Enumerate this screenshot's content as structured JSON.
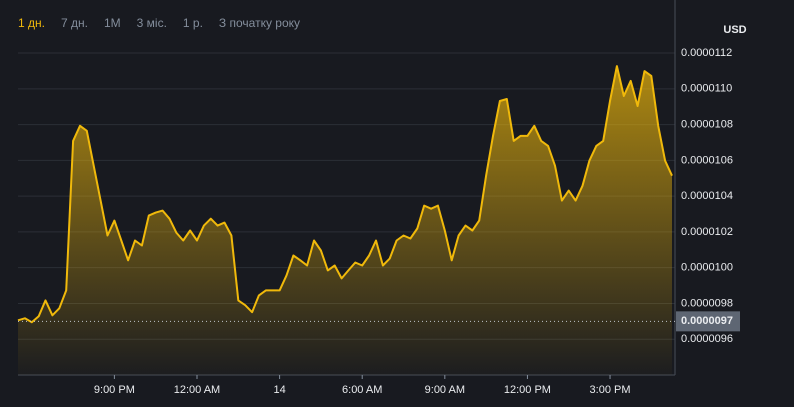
{
  "tabs": {
    "items": [
      "1 дн.",
      "7 дн.",
      "1M",
      "3 міс.",
      "1 р.",
      "З початку року"
    ],
    "active": 0
  },
  "chart_data": {
    "type": "area",
    "y_axis_label": "USD",
    "color": "#f0b90b",
    "categories": [
      null,
      null,
      null,
      null,
      null,
      null,
      null,
      null,
      null,
      null,
      null,
      null,
      null,
      null,
      "9:00 PM",
      null,
      null,
      null,
      null,
      null,
      null,
      null,
      null,
      null,
      null,
      null,
      "12:00 AM",
      null,
      null,
      null,
      null,
      null,
      null,
      null,
      null,
      null,
      null,
      null,
      "14",
      null,
      null,
      null,
      null,
      null,
      null,
      null,
      null,
      null,
      null,
      null,
      "6:00 AM",
      null,
      null,
      null,
      null,
      null,
      null,
      null,
      null,
      null,
      null,
      null,
      "9:00 AM",
      null,
      null,
      null,
      null,
      null,
      null,
      null,
      null,
      null,
      null,
      null,
      "12:00 PM",
      null,
      null,
      null,
      null,
      null,
      null,
      null,
      null,
      null,
      null,
      null,
      "3:00 PM",
      null,
      null,
      null,
      null,
      null,
      null,
      null,
      null,
      null
    ],
    "values": [
      9.706e-06,
      9.717e-06,
      9.695e-06,
      9.728e-06,
      9.817e-06,
      9.734e-06,
      9.773e-06,
      9.873e-06,
      1.0709e-05,
      1.0793e-05,
      1.0765e-05,
      1.057e-05,
      1.0375e-05,
      1.018e-05,
      1.0263e-05,
      1.0152e-05,
      1.0041e-05,
      1.0152e-05,
      1.0124e-05,
      1.0291e-05,
      1.0308e-05,
      1.0319e-05,
      1.0274e-05,
      1.0196e-05,
      1.0152e-05,
      1.0208e-05,
      1.0152e-05,
      1.0235e-05,
      1.0274e-05,
      1.0235e-05,
      1.0252e-05,
      1.018e-05,
      9.817e-06,
      9.79e-06,
      9.751e-06,
      9.845e-06,
      9.873e-06,
      9.873e-06,
      9.873e-06,
      9.957e-06,
      1.0068e-05,
      1.0041e-05,
      1.0012e-05,
      1.0152e-05,
      1.0096e-05,
      9.985e-06,
      1.0012e-05,
      9.94e-06,
      9.985e-06,
      1.0029e-05,
      1.0012e-05,
      1.0068e-05,
      1.0152e-05,
      1.0012e-05,
      1.0051e-05,
      1.0152e-05,
      1.018e-05,
      1.0163e-05,
      1.0219e-05,
      1.0347e-05,
      1.033e-05,
      1.0347e-05,
      1.0208e-05,
      1.0041e-05,
      1.018e-05,
      1.0235e-05,
      1.0208e-05,
      1.0263e-05,
      1.0514e-05,
      1.0737e-05,
      1.0932e-05,
      1.0943e-05,
      1.0709e-05,
      1.0737e-05,
      1.0737e-05,
      1.0793e-05,
      1.0709e-05,
      1.0681e-05,
      1.057e-05,
      1.0375e-05,
      1.0431e-05,
      1.0375e-05,
      1.0458e-05,
      1.0598e-05,
      1.0681e-05,
      1.0709e-05,
      1.0932e-05,
      1.1127e-05,
      1.096e-05,
      1.1044e-05,
      1.0904e-05,
      1.1099e-05,
      1.1072e-05,
      1.0793e-05,
      1.0598e-05,
      1.0514e-05
    ],
    "ylim": [
      9.4e-06,
      1.134e-05
    ],
    "yticks": [
      {
        "value": 9.6e-06,
        "label": "0.0000096"
      },
      {
        "value": 9.8e-06,
        "label": "0.0000098"
      },
      {
        "value": 1e-05,
        "label": "0.0000100"
      },
      {
        "value": 1.02e-05,
        "label": "0.0000102"
      },
      {
        "value": 1.04e-05,
        "label": "0.0000104"
      },
      {
        "value": 1.06e-05,
        "label": "0.0000106"
      },
      {
        "value": 1.08e-05,
        "label": "0.0000108"
      },
      {
        "value": 1.1e-05,
        "label": "0.0000110"
      },
      {
        "value": 1.12e-05,
        "label": "0.0000112"
      }
    ],
    "reference_line": {
      "value": 9.7e-06,
      "label": "0.0000097"
    },
    "grid": true
  }
}
